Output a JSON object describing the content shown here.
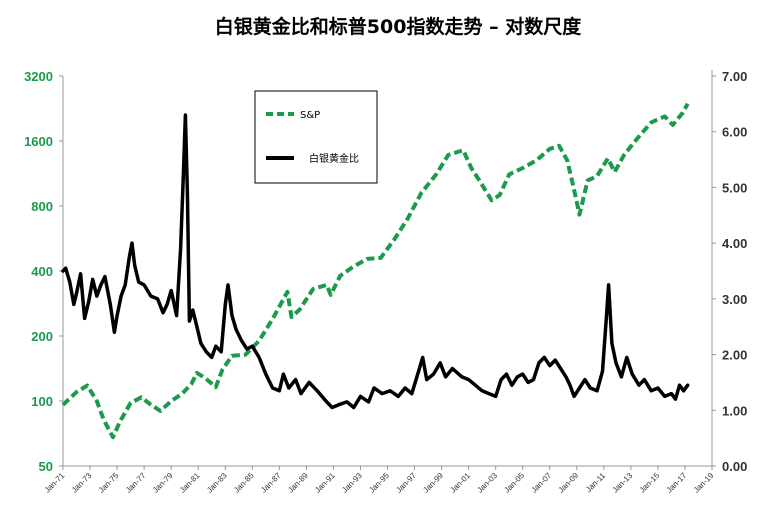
{
  "chart_data": {
    "type": "line",
    "title": "白银黄金比和标普500指数走势 – 对数尺度",
    "left_axis": {
      "scale": "log2",
      "ticks": [
        50,
        100,
        200,
        400,
        800,
        1600,
        3200
      ],
      "tick_labels": [
        "50",
        "100",
        "200",
        "400",
        "800",
        "1600",
        "3200"
      ],
      "color": "#1a9a4a"
    },
    "right_axis": {
      "scale": "linear",
      "ticks": [
        0,
        1,
        2,
        3,
        4,
        5,
        6,
        7
      ],
      "tick_labels": [
        "0.00",
        "1.00",
        "2.00",
        "3.00",
        "4.00",
        "5.00",
        "6.00",
        "7.00"
      ],
      "range": [
        0,
        7
      ]
    },
    "x_axis": {
      "range": [
        1971,
        2019
      ],
      "tick_years": [
        1971,
        1973,
        1975,
        1977,
        1979,
        1981,
        1983,
        1985,
        1987,
        1989,
        1991,
        1993,
        1995,
        1997,
        1999,
        2001,
        2003,
        2005,
        2007,
        2009,
        2011,
        2013,
        2015,
        2017,
        2019
      ],
      "tick_labels": [
        "Jan-71",
        "Jan-73",
        "Jan-75",
        "Jan-77",
        "Jan-79",
        "Jan-81",
        "Jan-83",
        "Jan-85",
        "Jan-87",
        "Jan-89",
        "Jan-91",
        "Jan-93",
        "Jan-95",
        "Jan-97",
        "Jan-99",
        "Jan-01",
        "Jan-03",
        "Jan-05",
        "Jan-07",
        "Jan-09",
        "Jan-11",
        "Jan-13",
        "Jan-15",
        "Jan-17",
        "Jan-19"
      ]
    },
    "legend": {
      "position": "upper-left-center",
      "entries": [
        "S&P",
        "白银黄金比"
      ]
    },
    "series": [
      {
        "name": "S&P",
        "axis": "left",
        "color": "#1a9a4a",
        "style": "dashed",
        "points": [
          [
            1971.0,
            96
          ],
          [
            1972.0,
            110
          ],
          [
            1972.8,
            118
          ],
          [
            1973.5,
            100
          ],
          [
            1974.0,
            82
          ],
          [
            1974.7,
            68
          ],
          [
            1975.2,
            80
          ],
          [
            1976.0,
            98
          ],
          [
            1976.8,
            104
          ],
          [
            1977.5,
            96
          ],
          [
            1978.2,
            90
          ],
          [
            1979.0,
            100
          ],
          [
            1979.8,
            108
          ],
          [
            1980.5,
            120
          ],
          [
            1980.9,
            135
          ],
          [
            1981.5,
            128
          ],
          [
            1982.3,
            116
          ],
          [
            1982.8,
            140
          ],
          [
            1983.5,
            162
          ],
          [
            1984.5,
            164
          ],
          [
            1985.5,
            190
          ],
          [
            1986.5,
            240
          ],
          [
            1987.6,
            320
          ],
          [
            1987.9,
            245
          ],
          [
            1988.5,
            265
          ],
          [
            1989.5,
            330
          ],
          [
            1990.5,
            345
          ],
          [
            1990.8,
            310
          ],
          [
            1991.5,
            380
          ],
          [
            1992.5,
            420
          ],
          [
            1993.5,
            455
          ],
          [
            1994.5,
            460
          ],
          [
            1995.5,
            560
          ],
          [
            1996.5,
            700
          ],
          [
            1997.5,
            920
          ],
          [
            1998.6,
            1120
          ],
          [
            1999.0,
            1230
          ],
          [
            1999.5,
            1380
          ],
          [
            2000.6,
            1450
          ],
          [
            2001.2,
            1200
          ],
          [
            2001.8,
            1050
          ],
          [
            2002.7,
            850
          ],
          [
            2003.3,
            900
          ],
          [
            2004.0,
            1120
          ],
          [
            2005.0,
            1200
          ],
          [
            2006.0,
            1300
          ],
          [
            2007.0,
            1470
          ],
          [
            2007.7,
            1520
          ],
          [
            2008.3,
            1300
          ],
          [
            2008.8,
            950
          ],
          [
            2009.2,
            730
          ],
          [
            2009.8,
            1050
          ],
          [
            2010.5,
            1100
          ],
          [
            2011.3,
            1330
          ],
          [
            2011.8,
            1150
          ],
          [
            2012.5,
            1380
          ],
          [
            2013.5,
            1650
          ],
          [
            2014.5,
            1950
          ],
          [
            2015.5,
            2080
          ],
          [
            2016.1,
            1900
          ],
          [
            2016.8,
            2150
          ],
          [
            2017.2,
            2380
          ]
        ]
      },
      {
        "name": "白银黄金比",
        "axis": "right",
        "color": "#000000",
        "style": "solid",
        "points": [
          [
            1971.0,
            3.5
          ],
          [
            1971.2,
            3.55
          ],
          [
            1971.5,
            3.3
          ],
          [
            1971.8,
            2.9
          ],
          [
            1972.0,
            3.1
          ],
          [
            1972.3,
            3.45
          ],
          [
            1972.6,
            2.65
          ],
          [
            1972.9,
            2.95
          ],
          [
            1973.2,
            3.35
          ],
          [
            1973.5,
            3.05
          ],
          [
            1973.8,
            3.25
          ],
          [
            1974.1,
            3.4
          ],
          [
            1974.5,
            2.9
          ],
          [
            1974.8,
            2.4
          ],
          [
            1975.0,
            2.7
          ],
          [
            1975.3,
            3.05
          ],
          [
            1975.6,
            3.25
          ],
          [
            1975.9,
            3.75
          ],
          [
            1976.1,
            4.0
          ],
          [
            1976.3,
            3.6
          ],
          [
            1976.6,
            3.3
          ],
          [
            1977.0,
            3.25
          ],
          [
            1977.5,
            3.05
          ],
          [
            1978.0,
            3.0
          ],
          [
            1978.4,
            2.75
          ],
          [
            1978.7,
            2.9
          ],
          [
            1979.0,
            3.15
          ],
          [
            1979.4,
            2.7
          ],
          [
            1979.7,
            3.9
          ],
          [
            1979.9,
            5.2
          ],
          [
            1980.05,
            6.3
          ],
          [
            1980.2,
            4.9
          ],
          [
            1980.35,
            2.6
          ],
          [
            1980.6,
            2.8
          ],
          [
            1980.9,
            2.5
          ],
          [
            1981.2,
            2.2
          ],
          [
            1981.6,
            2.05
          ],
          [
            1982.0,
            1.95
          ],
          [
            1982.3,
            2.15
          ],
          [
            1982.7,
            2.05
          ],
          [
            1983.0,
            2.9
          ],
          [
            1983.2,
            3.25
          ],
          [
            1983.5,
            2.7
          ],
          [
            1983.8,
            2.45
          ],
          [
            1984.2,
            2.25
          ],
          [
            1984.6,
            2.1
          ],
          [
            1985.0,
            2.15
          ],
          [
            1985.5,
            1.95
          ],
          [
            1986.0,
            1.65
          ],
          [
            1986.5,
            1.4
          ],
          [
            1987.0,
            1.35
          ],
          [
            1987.3,
            1.65
          ],
          [
            1987.7,
            1.4
          ],
          [
            1988.2,
            1.55
          ],
          [
            1988.6,
            1.3
          ],
          [
            1989.2,
            1.5
          ],
          [
            1989.8,
            1.35
          ],
          [
            1990.5,
            1.15
          ],
          [
            1990.9,
            1.05
          ],
          [
            1991.4,
            1.1
          ],
          [
            1992.0,
            1.15
          ],
          [
            1992.5,
            1.05
          ],
          [
            1993.0,
            1.25
          ],
          [
            1993.6,
            1.15
          ],
          [
            1994.0,
            1.4
          ],
          [
            1994.6,
            1.3
          ],
          [
            1995.2,
            1.35
          ],
          [
            1995.8,
            1.25
          ],
          [
            1996.3,
            1.4
          ],
          [
            1996.8,
            1.3
          ],
          [
            1997.3,
            1.7
          ],
          [
            1997.6,
            1.95
          ],
          [
            1997.9,
            1.55
          ],
          [
            1998.4,
            1.65
          ],
          [
            1998.9,
            1.85
          ],
          [
            1999.3,
            1.6
          ],
          [
            1999.8,
            1.75
          ],
          [
            2000.5,
            1.6
          ],
          [
            2001.0,
            1.55
          ],
          [
            2001.5,
            1.45
          ],
          [
            2002.0,
            1.35
          ],
          [
            2002.5,
            1.3
          ],
          [
            2003.0,
            1.25
          ],
          [
            2003.4,
            1.55
          ],
          [
            2003.8,
            1.65
          ],
          [
            2004.2,
            1.45
          ],
          [
            2004.6,
            1.6
          ],
          [
            2005.0,
            1.65
          ],
          [
            2005.4,
            1.5
          ],
          [
            2005.8,
            1.55
          ],
          [
            2006.2,
            1.85
          ],
          [
            2006.6,
            1.95
          ],
          [
            2007.0,
            1.8
          ],
          [
            2007.4,
            1.9
          ],
          [
            2007.8,
            1.75
          ],
          [
            2008.2,
            1.6
          ],
          [
            2008.5,
            1.45
          ],
          [
            2008.8,
            1.25
          ],
          [
            2009.2,
            1.4
          ],
          [
            2009.6,
            1.55
          ],
          [
            2010.0,
            1.4
          ],
          [
            2010.5,
            1.35
          ],
          [
            2010.9,
            1.7
          ],
          [
            2011.2,
            2.7
          ],
          [
            2011.35,
            3.25
          ],
          [
            2011.6,
            2.2
          ],
          [
            2011.9,
            1.85
          ],
          [
            2012.3,
            1.6
          ],
          [
            2012.7,
            1.95
          ],
          [
            2013.1,
            1.65
          ],
          [
            2013.6,
            1.45
          ],
          [
            2014.0,
            1.55
          ],
          [
            2014.5,
            1.35
          ],
          [
            2015.0,
            1.4
          ],
          [
            2015.5,
            1.25
          ],
          [
            2016.0,
            1.3
          ],
          [
            2016.3,
            1.2
          ],
          [
            2016.6,
            1.45
          ],
          [
            2016.9,
            1.35
          ],
          [
            2017.2,
            1.45
          ]
        ]
      }
    ]
  }
}
